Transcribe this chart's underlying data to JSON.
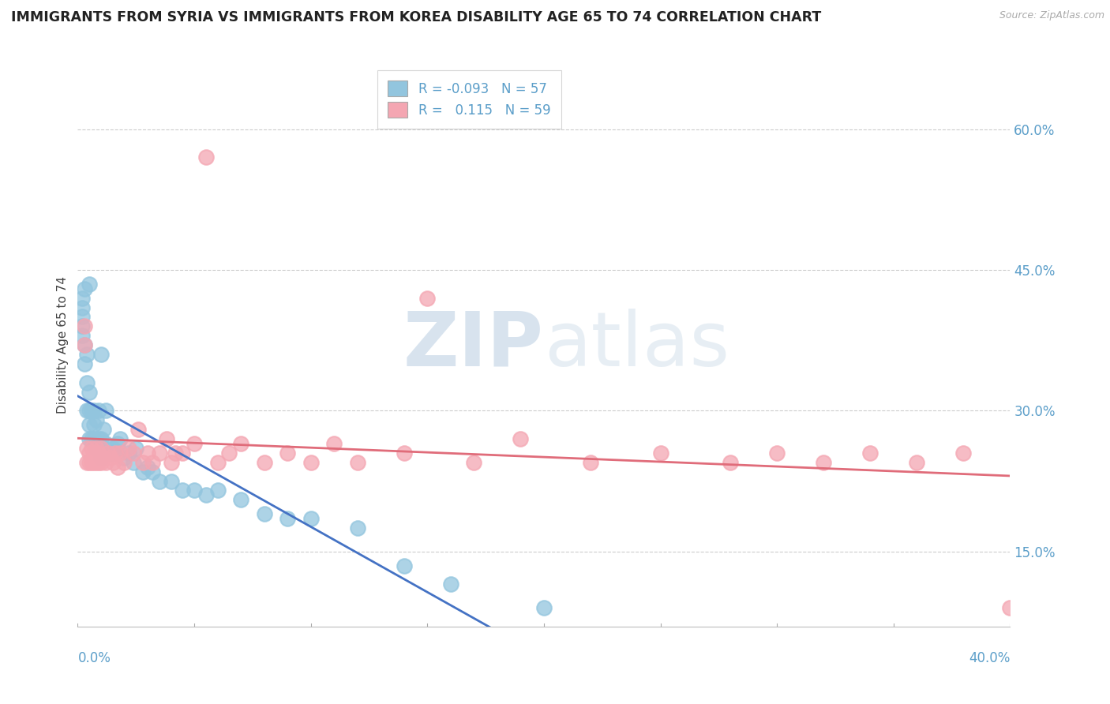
{
  "title": "IMMIGRANTS FROM SYRIA VS IMMIGRANTS FROM KOREA DISABILITY AGE 65 TO 74 CORRELATION CHART",
  "source": "Source: ZipAtlas.com",
  "ylabel": "Disability Age 65 to 74",
  "y_tick_labels": [
    "15.0%",
    "30.0%",
    "45.0%",
    "60.0%"
  ],
  "y_tick_values": [
    0.15,
    0.3,
    0.45,
    0.6
  ],
  "x_range": [
    0.0,
    0.4
  ],
  "y_range": [
    0.07,
    0.67
  ],
  "legend_syria": "R = -0.093   N = 57",
  "legend_korea": "R =   0.115   N = 59",
  "syria_color": "#92C5DE",
  "korea_color": "#F4A6B2",
  "syria_line_color": "#4472C4",
  "korea_line_color": "#E06C7A",
  "watermark_color": "#dde8f0",
  "syria_scatter_x": [
    0.002,
    0.002,
    0.002,
    0.002,
    0.002,
    0.003,
    0.003,
    0.003,
    0.004,
    0.004,
    0.004,
    0.005,
    0.005,
    0.005,
    0.005,
    0.005,
    0.006,
    0.006,
    0.007,
    0.007,
    0.007,
    0.008,
    0.008,
    0.009,
    0.009,
    0.01,
    0.01,
    0.01,
    0.011,
    0.012,
    0.012,
    0.014,
    0.015,
    0.016,
    0.017,
    0.018,
    0.02,
    0.022,
    0.024,
    0.025,
    0.028,
    0.03,
    0.032,
    0.035,
    0.04,
    0.045,
    0.05,
    0.055,
    0.06,
    0.07,
    0.08,
    0.09,
    0.1,
    0.12,
    0.14,
    0.16,
    0.2
  ],
  "syria_scatter_y": [
    0.38,
    0.39,
    0.4,
    0.41,
    0.42,
    0.35,
    0.37,
    0.43,
    0.3,
    0.33,
    0.36,
    0.27,
    0.285,
    0.3,
    0.32,
    0.435,
    0.27,
    0.3,
    0.27,
    0.285,
    0.3,
    0.26,
    0.29,
    0.27,
    0.3,
    0.25,
    0.27,
    0.36,
    0.28,
    0.265,
    0.3,
    0.255,
    0.26,
    0.255,
    0.265,
    0.27,
    0.25,
    0.255,
    0.245,
    0.26,
    0.235,
    0.24,
    0.235,
    0.225,
    0.225,
    0.215,
    0.215,
    0.21,
    0.215,
    0.205,
    0.19,
    0.185,
    0.185,
    0.175,
    0.135,
    0.115,
    0.09
  ],
  "korea_scatter_x": [
    0.003,
    0.003,
    0.004,
    0.004,
    0.005,
    0.005,
    0.006,
    0.006,
    0.007,
    0.007,
    0.008,
    0.008,
    0.009,
    0.009,
    0.01,
    0.01,
    0.011,
    0.012,
    0.013,
    0.014,
    0.015,
    0.016,
    0.017,
    0.018,
    0.02,
    0.022,
    0.024,
    0.026,
    0.028,
    0.03,
    0.032,
    0.035,
    0.038,
    0.04,
    0.042,
    0.045,
    0.05,
    0.055,
    0.06,
    0.065,
    0.07,
    0.08,
    0.09,
    0.1,
    0.11,
    0.12,
    0.14,
    0.15,
    0.17,
    0.19,
    0.22,
    0.25,
    0.28,
    0.3,
    0.32,
    0.34,
    0.36,
    0.38,
    0.4
  ],
  "korea_scatter_y": [
    0.37,
    0.39,
    0.245,
    0.26,
    0.245,
    0.255,
    0.245,
    0.26,
    0.245,
    0.255,
    0.245,
    0.26,
    0.245,
    0.255,
    0.245,
    0.26,
    0.25,
    0.245,
    0.255,
    0.25,
    0.245,
    0.255,
    0.24,
    0.255,
    0.245,
    0.26,
    0.255,
    0.28,
    0.245,
    0.255,
    0.245,
    0.255,
    0.27,
    0.245,
    0.255,
    0.255,
    0.265,
    0.57,
    0.245,
    0.255,
    0.265,
    0.245,
    0.255,
    0.245,
    0.265,
    0.245,
    0.255,
    0.42,
    0.245,
    0.27,
    0.245,
    0.255,
    0.245,
    0.255,
    0.245,
    0.255,
    0.245,
    0.255,
    0.09
  ]
}
